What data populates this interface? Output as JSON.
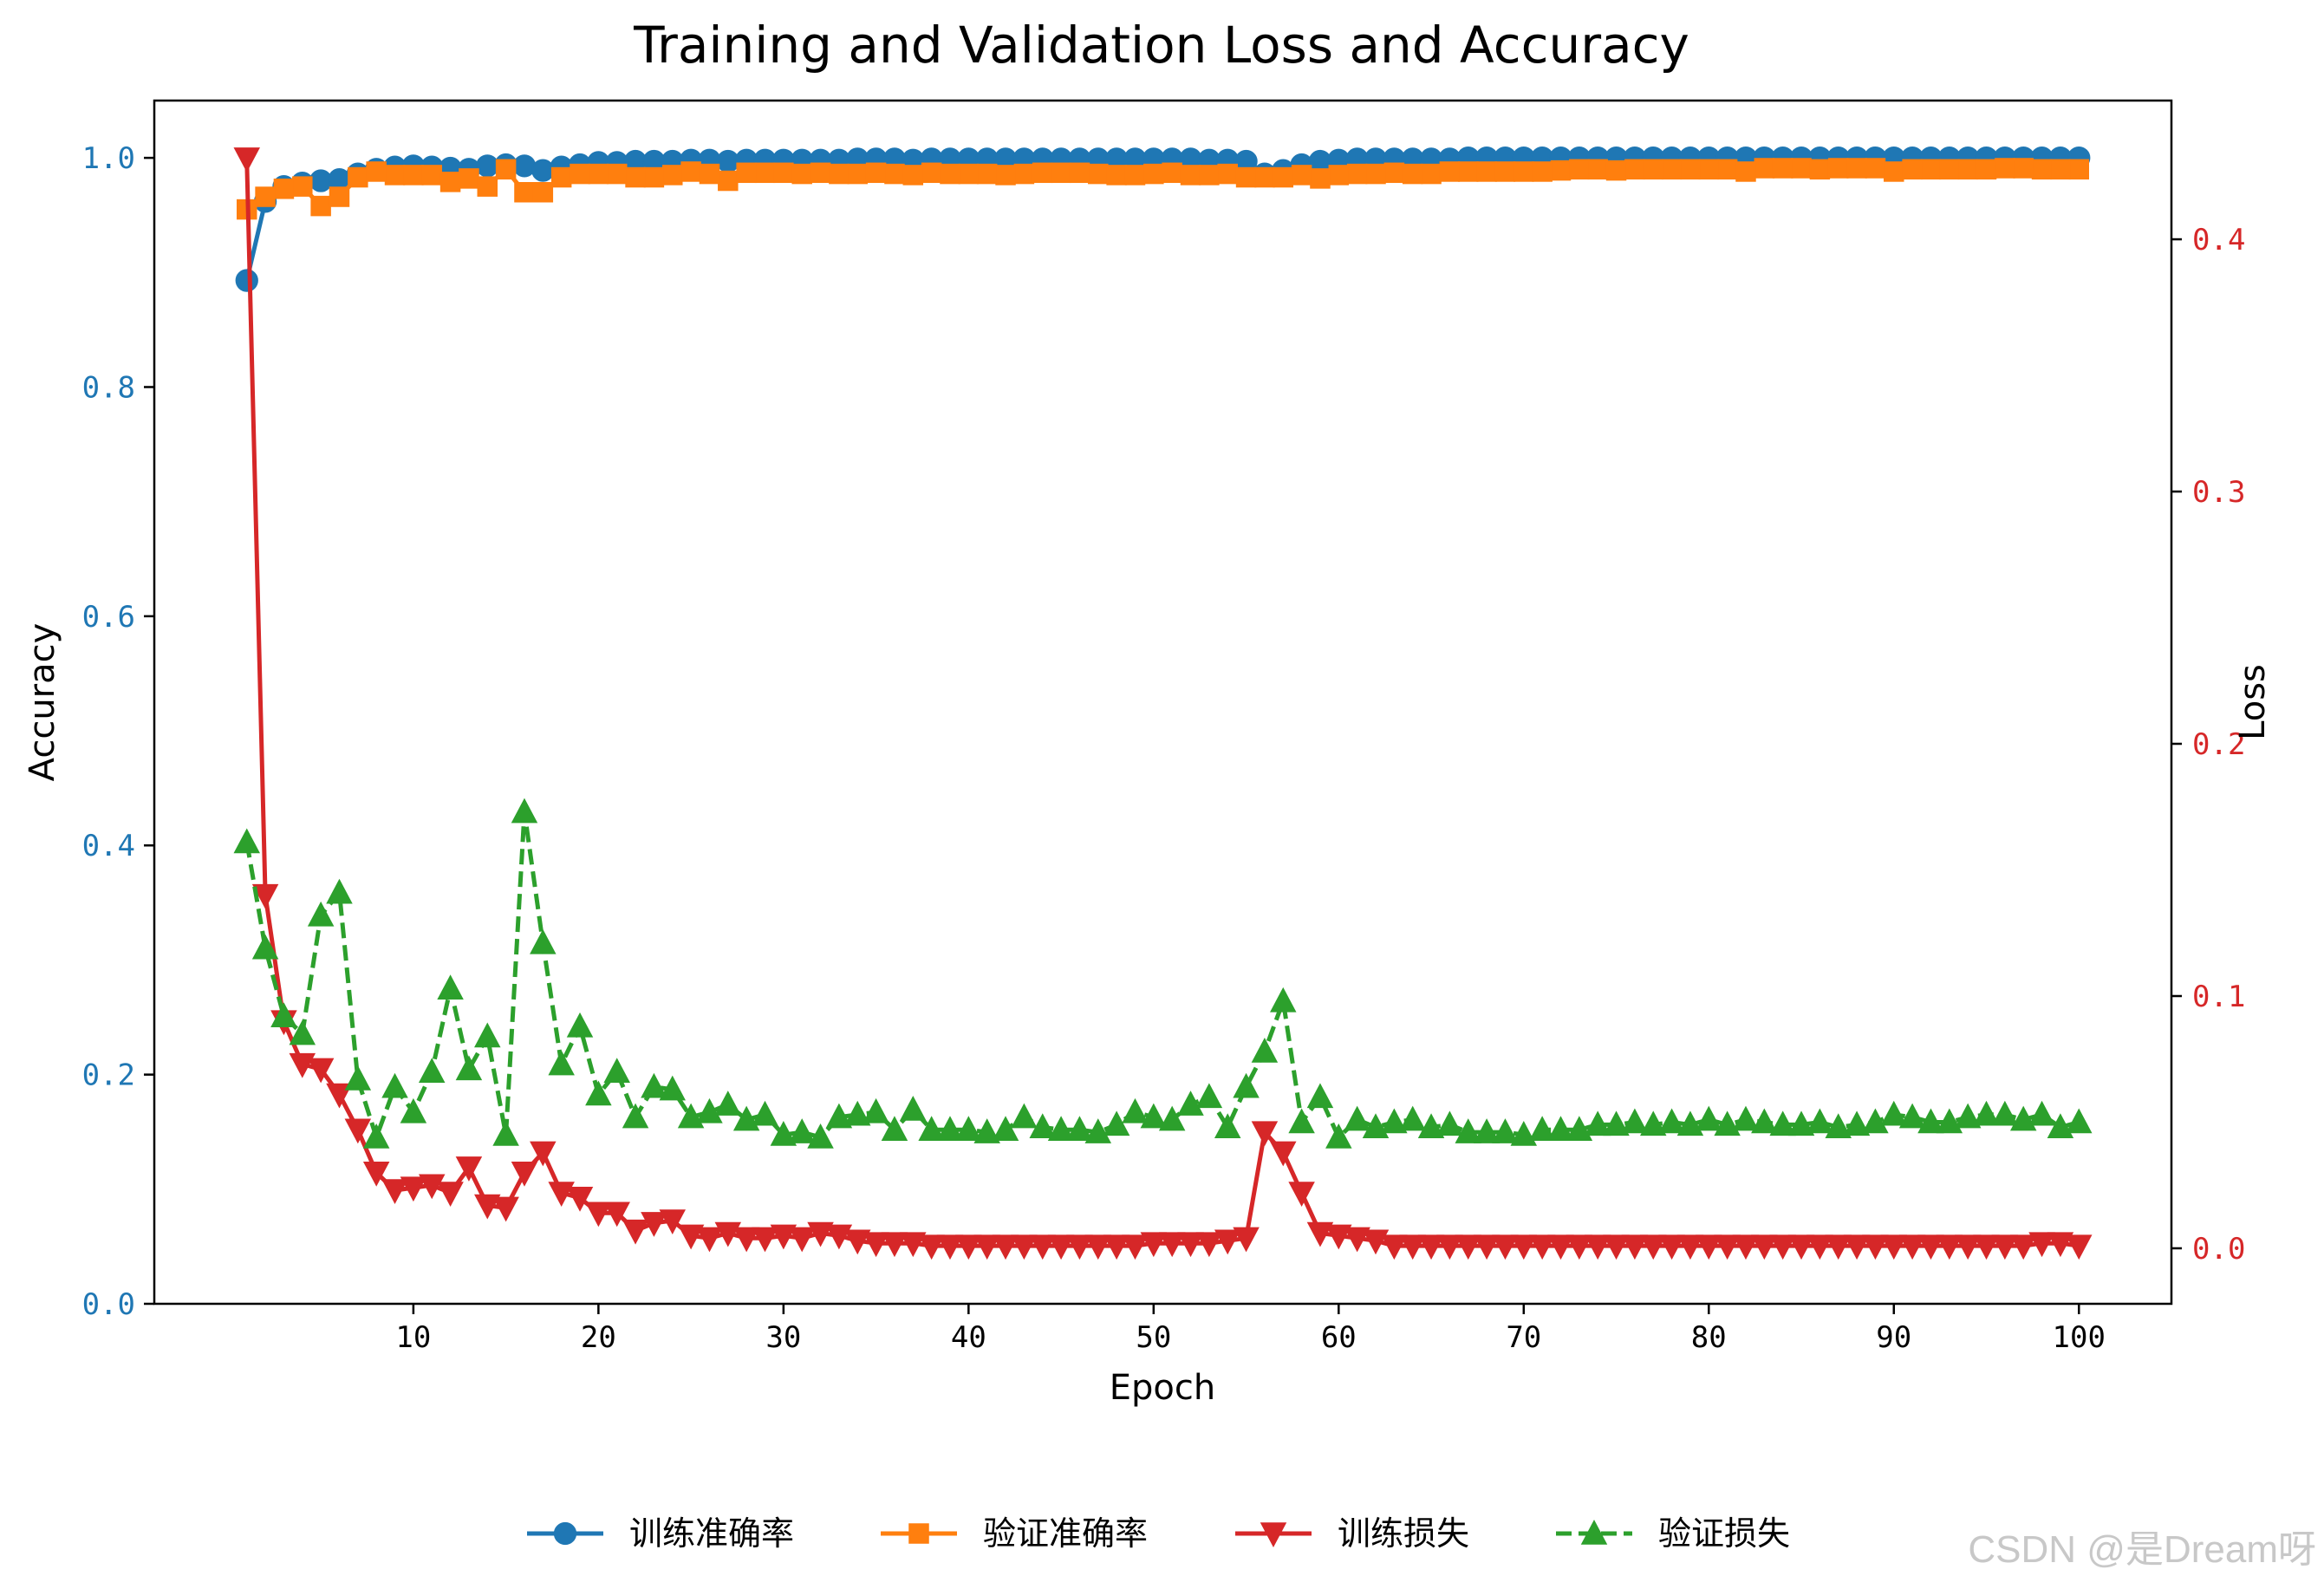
{
  "colors": {
    "train_acc": "#1f77b4",
    "val_acc": "#ff7f0e",
    "train_loss": "#d62728",
    "val_loss": "#2ca02c",
    "left_axis_ticks": "#1f77b4",
    "right_axis_ticks": "#d62728"
  },
  "watermark": "CSDN @是Dream呀",
  "chart_data": {
    "type": "line",
    "title": "Training and Validation Loss and Accuracy",
    "xlabel": "Epoch",
    "ylabel_left": "Accuracy",
    "ylabel_right": "Loss",
    "xlim": [
      -4,
      105
    ],
    "ylim_left": [
      0,
      1.05
    ],
    "ylim_right": [
      -0.022,
      0.455
    ],
    "xticks": [
      10,
      20,
      30,
      40,
      50,
      60,
      70,
      80,
      90,
      100
    ],
    "xtick_labels": [
      "10",
      "20",
      "30",
      "40",
      "50",
      "60",
      "70",
      "80",
      "90",
      "100"
    ],
    "yticks_left": [
      0.0,
      0.2,
      0.4,
      0.6,
      0.8,
      1.0
    ],
    "yticks_left_labels": [
      "0.0",
      "0.2",
      "0.4",
      "0.6",
      "0.8",
      "1.0"
    ],
    "yticks_right": [
      0.0,
      0.1,
      0.2,
      0.3,
      0.4
    ],
    "yticks_right_labels": [
      "0.0",
      "0.1",
      "0.2",
      "0.3",
      "0.4"
    ],
    "grid": false,
    "legend_position": "bottom-center",
    "x": [
      1,
      2,
      3,
      4,
      5,
      6,
      7,
      8,
      9,
      10,
      11,
      12,
      13,
      14,
      15,
      16,
      17,
      18,
      19,
      20,
      21,
      22,
      23,
      24,
      25,
      26,
      27,
      28,
      29,
      30,
      31,
      32,
      33,
      34,
      35,
      36,
      37,
      38,
      39,
      40,
      41,
      42,
      43,
      44,
      45,
      46,
      47,
      48,
      49,
      50,
      51,
      52,
      53,
      54,
      55,
      56,
      57,
      58,
      59,
      60,
      61,
      62,
      63,
      64,
      65,
      66,
      67,
      68,
      69,
      70,
      71,
      72,
      73,
      74,
      75,
      76,
      77,
      78,
      79,
      80,
      81,
      82,
      83,
      84,
      85,
      86,
      87,
      88,
      89,
      90,
      91,
      92,
      93,
      94,
      95,
      96,
      97,
      98,
      99,
      100
    ],
    "series": [
      {
        "name": "训练准确率",
        "axis": "left",
        "marker": "circle",
        "linestyle": "solid",
        "values": [
          0.893,
          0.962,
          0.975,
          0.978,
          0.98,
          0.981,
          0.986,
          0.99,
          0.992,
          0.993,
          0.992,
          0.991,
          0.99,
          0.993,
          0.994,
          0.993,
          0.989,
          0.992,
          0.994,
          0.996,
          0.996,
          0.997,
          0.997,
          0.997,
          0.998,
          0.998,
          0.997,
          0.998,
          0.998,
          0.998,
          0.998,
          0.998,
          0.998,
          0.999,
          0.999,
          0.999,
          0.998,
          0.999,
          0.999,
          0.999,
          0.999,
          0.999,
          0.999,
          0.999,
          0.999,
          0.999,
          0.999,
          0.999,
          0.999,
          0.999,
          0.999,
          0.999,
          0.998,
          0.998,
          0.997,
          0.986,
          0.989,
          0.994,
          0.997,
          0.998,
          0.999,
          0.999,
          0.999,
          0.999,
          0.999,
          0.999,
          1.0,
          1.0,
          1.0,
          1.0,
          1.0,
          1.0,
          1.0,
          1.0,
          1.0,
          1.0,
          1.0,
          1.0,
          1.0,
          1.0,
          1.0,
          1.0,
          1.0,
          1.0,
          1.0,
          1.0,
          1.0,
          1.0,
          1.0,
          1.0,
          1.0,
          1.0,
          1.0,
          1.0,
          1.0,
          1.0,
          1.0,
          1.0,
          1.0,
          1.0
        ]
      },
      {
        "name": "验证准确率",
        "axis": "left",
        "marker": "square",
        "linestyle": "solid",
        "values": [
          0.955,
          0.966,
          0.973,
          0.975,
          0.958,
          0.966,
          0.983,
          0.988,
          0.985,
          0.985,
          0.985,
          0.979,
          0.982,
          0.975,
          0.99,
          0.97,
          0.97,
          0.983,
          0.986,
          0.986,
          0.986,
          0.983,
          0.983,
          0.985,
          0.988,
          0.986,
          0.98,
          0.987,
          0.987,
          0.987,
          0.986,
          0.987,
          0.986,
          0.986,
          0.987,
          0.986,
          0.985,
          0.987,
          0.986,
          0.986,
          0.986,
          0.985,
          0.986,
          0.987,
          0.987,
          0.987,
          0.986,
          0.985,
          0.985,
          0.986,
          0.987,
          0.985,
          0.985,
          0.986,
          0.983,
          0.983,
          0.983,
          0.985,
          0.982,
          0.985,
          0.986,
          0.986,
          0.987,
          0.986,
          0.986,
          0.988,
          0.988,
          0.988,
          0.988,
          0.988,
          0.988,
          0.989,
          0.99,
          0.99,
          0.989,
          0.99,
          0.99,
          0.99,
          0.99,
          0.99,
          0.99,
          0.988,
          0.991,
          0.991,
          0.991,
          0.99,
          0.991,
          0.991,
          0.991,
          0.988,
          0.99,
          0.99,
          0.99,
          0.99,
          0.99,
          0.991,
          0.991,
          0.99,
          0.99,
          0.99
        ]
      },
      {
        "name": "训练损失",
        "axis": "right",
        "marker": "triangle-down",
        "linestyle": "solid",
        "values": [
          0.432,
          0.14,
          0.09,
          0.073,
          0.071,
          0.061,
          0.047,
          0.03,
          0.023,
          0.024,
          0.025,
          0.022,
          0.032,
          0.017,
          0.016,
          0.03,
          0.038,
          0.022,
          0.02,
          0.014,
          0.014,
          0.007,
          0.01,
          0.011,
          0.005,
          0.004,
          0.006,
          0.004,
          0.004,
          0.005,
          0.004,
          0.006,
          0.005,
          0.003,
          0.002,
          0.002,
          0.002,
          0.001,
          0.001,
          0.001,
          0.001,
          0.001,
          0.001,
          0.001,
          0.001,
          0.001,
          0.001,
          0.001,
          0.001,
          0.002,
          0.002,
          0.002,
          0.002,
          0.003,
          0.004,
          0.046,
          0.038,
          0.022,
          0.006,
          0.005,
          0.004,
          0.003,
          0.001,
          0.001,
          0.001,
          0.001,
          0.001,
          0.001,
          0.001,
          0.001,
          0.001,
          0.001,
          0.001,
          0.001,
          0.001,
          0.001,
          0.001,
          0.001,
          0.001,
          0.001,
          0.001,
          0.001,
          0.001,
          0.001,
          0.001,
          0.001,
          0.001,
          0.001,
          0.001,
          0.001,
          0.001,
          0.001,
          0.001,
          0.001,
          0.001,
          0.001,
          0.001,
          0.002,
          0.002,
          0.001
        ]
      },
      {
        "name": "验证损失",
        "axis": "right",
        "marker": "triangle-up",
        "linestyle": "dashed",
        "values": [
          0.161,
          0.119,
          0.092,
          0.085,
          0.132,
          0.141,
          0.067,
          0.044,
          0.064,
          0.054,
          0.07,
          0.103,
          0.071,
          0.084,
          0.045,
          0.173,
          0.121,
          0.073,
          0.088,
          0.061,
          0.07,
          0.052,
          0.064,
          0.063,
          0.052,
          0.054,
          0.057,
          0.051,
          0.053,
          0.045,
          0.046,
          0.044,
          0.052,
          0.053,
          0.054,
          0.047,
          0.055,
          0.047,
          0.047,
          0.047,
          0.046,
          0.047,
          0.052,
          0.048,
          0.047,
          0.047,
          0.046,
          0.049,
          0.054,
          0.052,
          0.051,
          0.057,
          0.06,
          0.048,
          0.064,
          0.078,
          0.098,
          0.05,
          0.06,
          0.044,
          0.051,
          0.048,
          0.05,
          0.051,
          0.048,
          0.049,
          0.046,
          0.046,
          0.046,
          0.045,
          0.047,
          0.047,
          0.047,
          0.049,
          0.049,
          0.05,
          0.049,
          0.05,
          0.049,
          0.051,
          0.049,
          0.051,
          0.05,
          0.049,
          0.049,
          0.05,
          0.048,
          0.049,
          0.05,
          0.053,
          0.052,
          0.05,
          0.05,
          0.052,
          0.053,
          0.053,
          0.051,
          0.053,
          0.048,
          0.05
        ]
      }
    ]
  }
}
